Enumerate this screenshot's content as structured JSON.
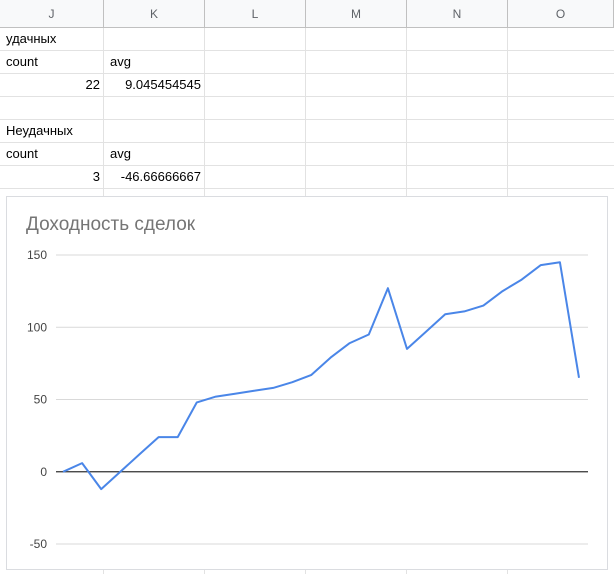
{
  "columns": [
    "J",
    "K",
    "L",
    "M",
    "N",
    "O"
  ],
  "cells": {
    "label_success": "удачных",
    "count_label_1": "count",
    "avg_label_1": "avg",
    "count_value_1": "22",
    "avg_value_1": "9.045454545",
    "label_fail": "Неудачных",
    "count_label_2": "count",
    "avg_label_2": "avg",
    "count_value_2": "3",
    "avg_value_2": "-46.66666667"
  },
  "colors": {
    "line": "#4a86e8",
    "grid": "#d9d9d9",
    "zero_axis": "#333333"
  },
  "chart_data": {
    "type": "line",
    "title": "Доходность сделок",
    "xlabel": "",
    "ylabel": "",
    "ylim": [
      -50,
      150
    ],
    "yticks": [
      150,
      100,
      50,
      0,
      -50
    ],
    "yticklabels": [
      "150",
      "100",
      "50",
      "0",
      "-50"
    ],
    "grid": true,
    "series": [
      {
        "values": [
          0,
          6,
          -12,
          0,
          12,
          24,
          24,
          48,
          52,
          54,
          56,
          58,
          62,
          67,
          79,
          89,
          95,
          127,
          85,
          97,
          109,
          111,
          115,
          125,
          133,
          143,
          145,
          65
        ]
      }
    ]
  }
}
